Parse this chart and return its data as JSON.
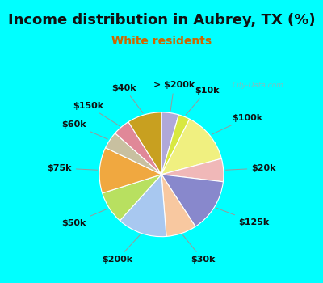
{
  "title": "Income distribution in Aubrey, TX (%)",
  "subtitle": "White residents",
  "title_color": "#111111",
  "subtitle_color": "#cc6600",
  "bg_cyan": "#00ffff",
  "bg_chart": "#e0f5ee",
  "labels": [
    "> $200k",
    "$10k",
    "$100k",
    "$20k",
    "$125k",
    "$30k",
    "$200k",
    "$50k",
    "$75k",
    "$60k",
    "$150k",
    "$40k"
  ],
  "values": [
    4.5,
    3.0,
    13.5,
    6.0,
    14.0,
    8.0,
    13.0,
    8.5,
    12.0,
    4.5,
    4.5,
    9.0
  ],
  "colors": [
    "#b0a8d8",
    "#d8e840",
    "#f0f080",
    "#f0b8b8",
    "#8888cc",
    "#f8c8a0",
    "#a8c8f0",
    "#b8e060",
    "#f0a840",
    "#c8c0a0",
    "#e08898",
    "#c8a020"
  ],
  "label_fontsize": 8,
  "label_color": "#111111",
  "title_fontsize": 13,
  "subtitle_fontsize": 10,
  "watermark": "City-Data.com"
}
